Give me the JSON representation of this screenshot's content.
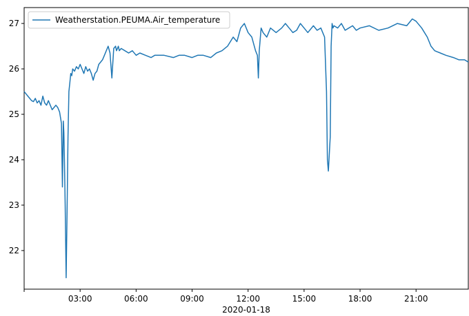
{
  "chart_data": {
    "type": "line",
    "legend": {
      "position": "upper left"
    },
    "series": [
      {
        "name": "Weatherstation.PEUMA.Air_temperature",
        "color": "#1f77b4",
        "x_hours": [
          0.0,
          0.1,
          0.2,
          0.3,
          0.4,
          0.5,
          0.6,
          0.7,
          0.8,
          0.9,
          1.0,
          1.1,
          1.2,
          1.3,
          1.4,
          1.5,
          1.6,
          1.7,
          1.8,
          1.9,
          2.0,
          2.05,
          2.1,
          2.13,
          2.16,
          2.2,
          2.25,
          2.3,
          2.35,
          2.4,
          2.45,
          2.5,
          2.55,
          2.6,
          2.7,
          2.8,
          2.9,
          3.0,
          3.1,
          3.2,
          3.3,
          3.4,
          3.5,
          3.6,
          3.7,
          3.8,
          3.9,
          4.0,
          4.2,
          4.3,
          4.5,
          4.6,
          4.7,
          4.8,
          4.9,
          4.95,
          5.0,
          5.05,
          5.1,
          5.2,
          5.4,
          5.6,
          5.8,
          6.0,
          6.2,
          6.5,
          6.8,
          7.0,
          7.5,
          8.0,
          8.3,
          8.6,
          9.0,
          9.3,
          9.6,
          10.0,
          10.3,
          10.6,
          10.9,
          11.2,
          11.4,
          11.6,
          11.8,
          12.0,
          12.2,
          12.4,
          12.5,
          12.55,
          12.6,
          12.7,
          12.8,
          13.0,
          13.2,
          13.5,
          13.8,
          14.0,
          14.2,
          14.4,
          14.6,
          14.8,
          15.0,
          15.2,
          15.5,
          15.7,
          15.9,
          16.0,
          16.1,
          16.2,
          16.25,
          16.3,
          16.4,
          16.45,
          16.5,
          16.55,
          16.6,
          16.8,
          17.0,
          17.2,
          17.4,
          17.6,
          17.8,
          18.0,
          18.5,
          19.0,
          19.5,
          20.0,
          20.5,
          20.8,
          21.0,
          21.3,
          21.6,
          21.8,
          22.0,
          22.3,
          22.6,
          23.0,
          23.3,
          23.6,
          23.8
        ],
        "y": [
          25.5,
          25.45,
          25.4,
          25.35,
          25.3,
          25.28,
          25.35,
          25.25,
          25.3,
          25.2,
          25.4,
          25.25,
          25.2,
          25.3,
          25.2,
          25.1,
          25.15,
          25.2,
          25.15,
          25.05,
          24.8,
          23.4,
          24.85,
          24.6,
          24.0,
          23.0,
          21.4,
          22.8,
          24.5,
          25.5,
          25.7,
          25.9,
          25.85,
          26.0,
          25.95,
          26.05,
          26.0,
          26.1,
          26.0,
          25.9,
          26.05,
          25.95,
          26.0,
          25.9,
          25.75,
          25.9,
          25.95,
          26.1,
          26.2,
          26.3,
          26.5,
          26.35,
          25.8,
          26.45,
          26.5,
          26.4,
          26.45,
          26.5,
          26.4,
          26.45,
          26.4,
          26.35,
          26.4,
          26.3,
          26.35,
          26.3,
          26.25,
          26.3,
          26.3,
          26.25,
          26.3,
          26.3,
          26.25,
          26.3,
          26.3,
          26.25,
          26.35,
          26.4,
          26.5,
          26.7,
          26.6,
          26.9,
          27.0,
          26.8,
          26.7,
          26.4,
          26.3,
          25.8,
          26.4,
          26.9,
          26.8,
          26.7,
          26.9,
          26.8,
          26.9,
          27.0,
          26.9,
          26.8,
          26.85,
          27.0,
          26.9,
          26.8,
          26.95,
          26.85,
          26.9,
          26.8,
          26.7,
          25.5,
          24.0,
          23.75,
          24.5,
          26.5,
          27.0,
          26.9,
          26.95,
          26.9,
          27.0,
          26.85,
          26.9,
          26.95,
          26.85,
          26.9,
          26.95,
          26.85,
          26.9,
          27.0,
          26.95,
          27.1,
          27.05,
          26.9,
          26.7,
          26.5,
          26.4,
          26.35,
          26.3,
          26.25,
          26.2,
          26.2,
          26.15
        ]
      }
    ],
    "x_axis": {
      "type": "time",
      "range_hours": [
        0.0,
        23.8
      ],
      "ticks": [
        {
          "hour": 0,
          "label": ""
        },
        {
          "hour": 3,
          "label": "03:00"
        },
        {
          "hour": 6,
          "label": "06:00"
        },
        {
          "hour": 9,
          "label": "09:00"
        },
        {
          "hour": 12,
          "label": "12:00"
        },
        {
          "hour": 15,
          "label": "15:00"
        },
        {
          "hour": 18,
          "label": "18:00"
        },
        {
          "hour": 21,
          "label": "21:00"
        }
      ],
      "date_label": "2020-01-18"
    },
    "y_axis": {
      "range": [
        21.15,
        27.35
      ],
      "ticks": [
        22,
        23,
        24,
        25,
        26,
        27
      ]
    },
    "grid": false
  }
}
